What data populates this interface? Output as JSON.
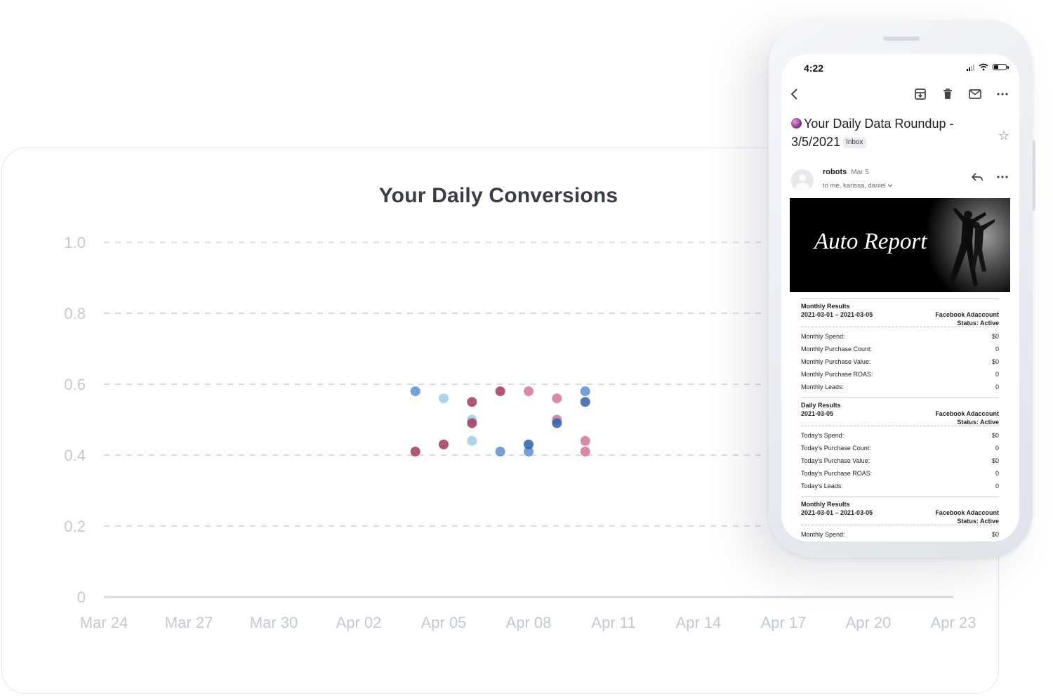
{
  "chart": {
    "title": "Your Daily Conversions"
  },
  "chart_data": {
    "type": "scatter",
    "title": "Your Daily Conversions",
    "xlabel": "",
    "ylabel": "",
    "ylim": [
      0,
      1.0
    ],
    "y_ticks": [
      "0",
      "0.2",
      "0.4",
      "0.6",
      "0.8",
      "1.0"
    ],
    "x_ticks": [
      "Mar 24",
      "Mar 27",
      "Mar 30",
      "Apr 02",
      "Apr 05",
      "Apr 08",
      "Apr 11",
      "Apr 14",
      "Apr 17",
      "Apr 20",
      "Apr 23"
    ],
    "grid": true,
    "series": [
      {
        "color": "#5b8fcf",
        "points": [
          {
            "x": "Apr 04",
            "y": 0.58
          },
          {
            "x": "Apr 07",
            "y": 0.41
          },
          {
            "x": "Apr 08",
            "y": 0.41
          },
          {
            "x": "Apr 10",
            "y": 0.58
          }
        ]
      },
      {
        "color": "#9fcde8",
        "points": [
          {
            "x": "Apr 05",
            "y": 0.56
          },
          {
            "x": "Apr 06",
            "y": 0.5
          },
          {
            "x": "Apr 06",
            "y": 0.44
          }
        ]
      },
      {
        "color": "#a33a5e",
        "points": [
          {
            "x": "Apr 04",
            "y": 0.41
          },
          {
            "x": "Apr 05",
            "y": 0.43
          },
          {
            "x": "Apr 06",
            "y": 0.49
          },
          {
            "x": "Apr 06",
            "y": 0.55
          },
          {
            "x": "Apr 07",
            "y": 0.58
          }
        ]
      },
      {
        "color": "#d4769a",
        "points": [
          {
            "x": "Apr 08",
            "y": 0.58
          },
          {
            "x": "Apr 09",
            "y": 0.56
          },
          {
            "x": "Apr 09",
            "y": 0.5
          },
          {
            "x": "Apr 10",
            "y": 0.44
          },
          {
            "x": "Apr 10",
            "y": 0.41
          }
        ]
      },
      {
        "color": "#2f5faa",
        "points": [
          {
            "x": "Apr 08",
            "y": 0.43
          },
          {
            "x": "Apr 09",
            "y": 0.49
          },
          {
            "x": "Apr 10",
            "y": 0.55
          }
        ]
      }
    ]
  },
  "phone": {
    "status_time": "4:22",
    "toolbar_icons": [
      "back-icon",
      "archive-icon",
      "trash-icon",
      "mail-icon",
      "more-icon"
    ],
    "subject_line1": "Your Daily Data Roundup -",
    "subject_line2": "3/5/2021",
    "inbox_tag": "Inbox",
    "sender": "robots",
    "date": "Mar 5",
    "recipients": "to me, karissa, daniel",
    "banner_title": "Auto Report",
    "sections": [
      {
        "title": "Monthly Results",
        "range": "2021-03-01 – 2021-03-05",
        "account": "Facebook Adaccount",
        "status": "Status: Active",
        "rows": [
          {
            "label": "Monthly Spend:",
            "value": "$0"
          },
          {
            "label": "Monthly Purchase Count:",
            "value": "0"
          },
          {
            "label": "Monthly Purchase Value:",
            "value": "$0"
          },
          {
            "label": "Monthly Purchase ROAS:",
            "value": "0"
          },
          {
            "label": "Monthly Leads:",
            "value": "0"
          }
        ]
      },
      {
        "title": "Daily Results",
        "range": "2021-03-05",
        "account": "Facebook Adaccount",
        "status": "Status: Active",
        "rows": [
          {
            "label": "Today's Spend:",
            "value": "$0"
          },
          {
            "label": "Today's Purchase Count:",
            "value": "0"
          },
          {
            "label": "Today's Purchase Value:",
            "value": "$0"
          },
          {
            "label": "Today's Purchase ROAS:",
            "value": "0"
          },
          {
            "label": "Today's Leads:",
            "value": "0"
          }
        ]
      },
      {
        "title": "Monthly Results",
        "range": "2021-03-01 – 2021-03-05",
        "account": "Facebook Adaccount",
        "status": "Status: Active",
        "rows": [
          {
            "label": "Monthly Spend:",
            "value": "$0"
          }
        ]
      }
    ]
  }
}
